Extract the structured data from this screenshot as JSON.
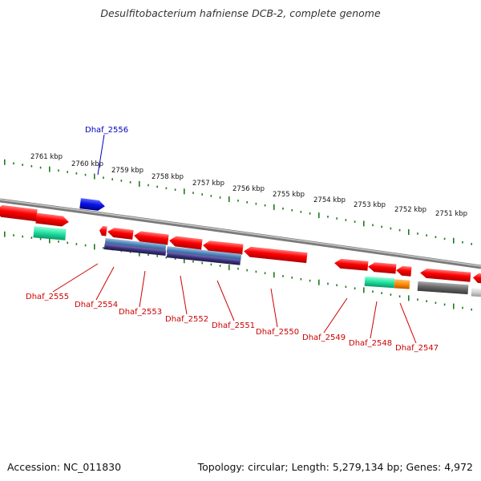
{
  "title": "Desulfitobacterium hafniense DCB-2, complete genome",
  "footer": {
    "accession": "Accession: NC_011830",
    "stats": "Topology: circular; Length: 5,279,134 bp; Genes: 4,972"
  },
  "colors": {
    "label_forward": "#0000c0",
    "label_reverse": "#cc0000",
    "tick": "#1e7a1e",
    "backbone": "#8a8a8a",
    "gene_red": "#ff0000",
    "gene_blue": "#0a14e6",
    "gene_teal": "#20e0a0",
    "gene_steel": "#4f82b8",
    "gene_navy": "#3a2f7a",
    "gene_orange": "#ff8a00",
    "gene_grey": "#666666"
  },
  "scale_labels": [
    "2761 kbp",
    "2760 kbp",
    "2759 kbp",
    "2758 kbp",
    "2757 kbp",
    "2756 kbp",
    "2755 kbp",
    "2754 kbp",
    "2753 kbp",
    "2752 kbp",
    "2751 kbp"
  ],
  "gene_labels": [
    {
      "text": "Dhaf_2556",
      "strand": "forward"
    },
    {
      "text": "Dhaf_2555",
      "strand": "reverse"
    },
    {
      "text": "Dhaf_2554",
      "strand": "reverse"
    },
    {
      "text": "Dhaf_2553",
      "strand": "reverse"
    },
    {
      "text": "Dhaf_2552",
      "strand": "reverse"
    },
    {
      "text": "Dhaf_2551",
      "strand": "reverse"
    },
    {
      "text": "Dhaf_2550",
      "strand": "reverse"
    },
    {
      "text": "Dhaf_2549",
      "strand": "reverse"
    },
    {
      "text": "Dhaf_2548",
      "strand": "reverse"
    },
    {
      "text": "Dhaf_2547",
      "strand": "reverse"
    }
  ]
}
